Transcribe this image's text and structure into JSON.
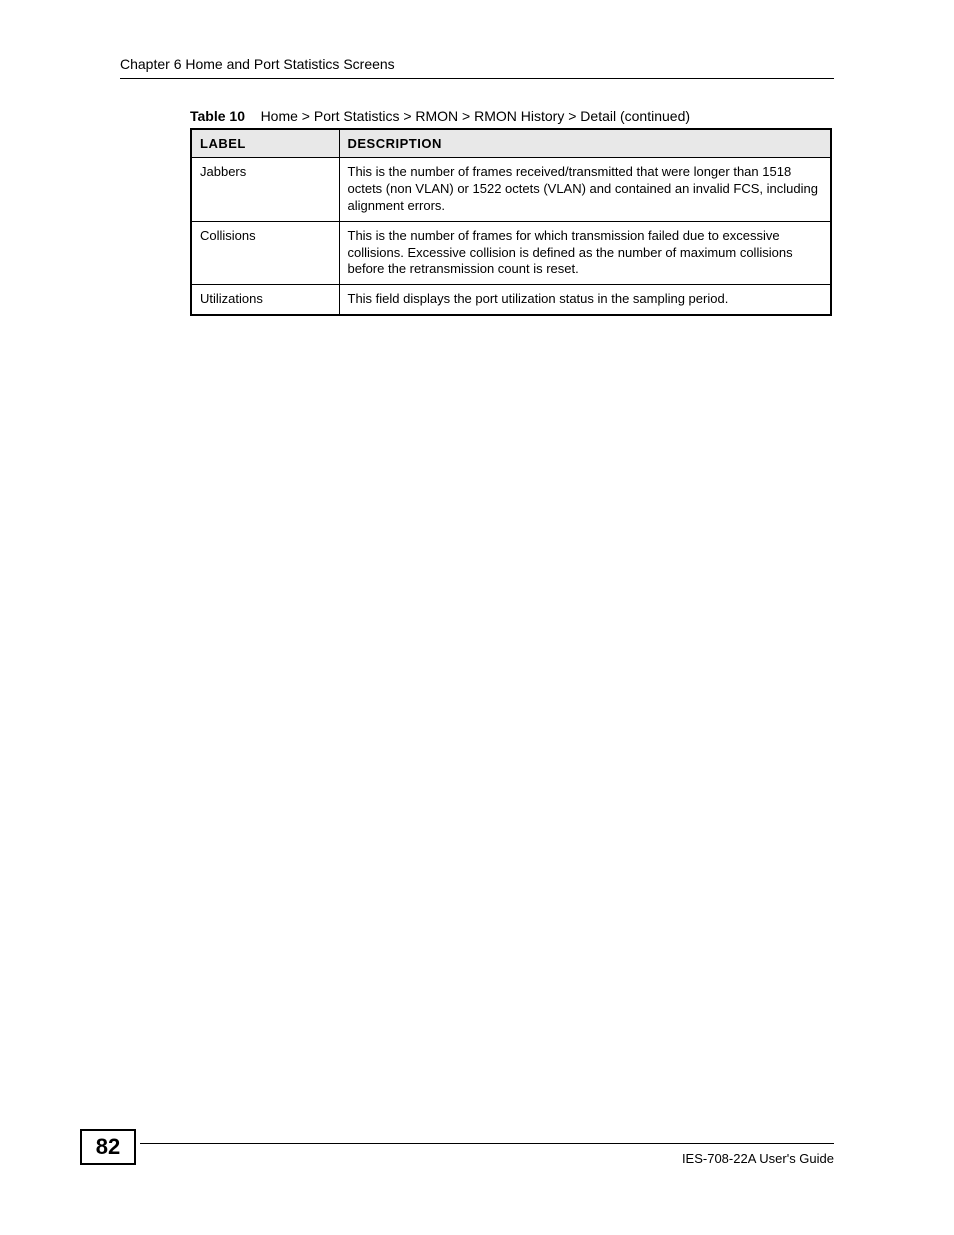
{
  "header": {
    "chapter_title": "Chapter 6 Home and Port Statistics Screens"
  },
  "caption": {
    "table_number": "Table 10",
    "breadcrumb": "Home > Port Statistics > RMON > RMON History > Detail (continued)"
  },
  "table": {
    "columns": [
      "LABEL",
      "DESCRIPTION"
    ],
    "rows": [
      {
        "label": "Jabbers",
        "description": "This is the number of frames received/transmitted that were longer than 1518 octets (non VLAN) or 1522 octets (VLAN) and contained an invalid FCS, including alignment errors."
      },
      {
        "label": "Collisions",
        "description": "This is the number of frames for which transmission failed due to excessive collisions. Excessive collision is defined as the number of maximum collisions before the retransmission count is reset."
      },
      {
        "label": "Utilizations",
        "description": "This field displays the port utilization status in the sampling period."
      }
    ]
  },
  "footer": {
    "page_number": "82",
    "guide_name": "IES-708-22A User's Guide"
  }
}
